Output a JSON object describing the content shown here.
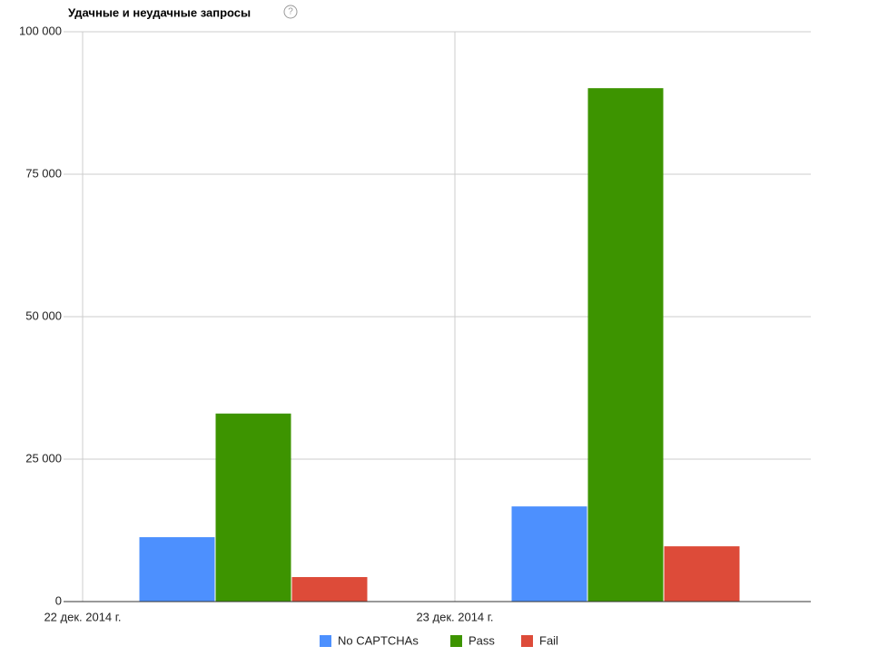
{
  "chart_data": {
    "type": "bar",
    "title": "Удачные и неудачные запросы",
    "help_icon": "?",
    "categories": [
      "22 дек. 2014 г.",
      "23 дек. 2014 г."
    ],
    "series": [
      {
        "name": "No CAPTCHAs",
        "color": "#4d90fe",
        "values": [
          11300,
          16700
        ]
      },
      {
        "name": "Pass",
        "color": "#3d9400",
        "values": [
          33000,
          90100
        ]
      },
      {
        "name": "Fail",
        "color": "#dd4b39",
        "values": [
          4300,
          9700
        ]
      }
    ],
    "ylim": [
      0,
      100000
    ],
    "yticks": [
      0,
      {
        "value": 25000,
        "label": "25 000"
      },
      {
        "value": 50000,
        "label": "50 000"
      },
      {
        "value": 75000,
        "label": "75 000"
      },
      {
        "value": 100000,
        "label": "100 000"
      }
    ],
    "grid": true,
    "legend": "bottom"
  }
}
